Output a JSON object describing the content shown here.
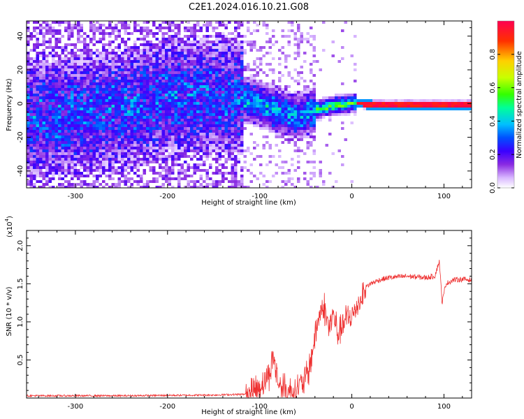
{
  "title": "C2E1.2024.016.10.21.G08",
  "colors": {
    "snr_line": "#ee3030",
    "colormap": [
      "#ffffff",
      "#d9b8ff",
      "#8a2be2",
      "#5a00ff",
      "#0000ff",
      "#00bfff",
      "#00ff66",
      "#adff2f",
      "#ffd000",
      "#ff4000",
      "#ff0040"
    ]
  },
  "chart_data": [
    {
      "type": "heatmap",
      "xlabel": "Height of straight line (km)",
      "ylabel": "Frequency (Hz)",
      "xlim": [
        -353,
        130
      ],
      "ylim": [
        -50,
        49
      ],
      "xticks": [
        -300,
        -200,
        -100,
        0,
        100
      ],
      "yticks": [
        -40,
        -20,
        0,
        20,
        40
      ],
      "colorbar": {
        "label": "Normalized spectral amplitude",
        "range": [
          0,
          1
        ],
        "ticks": [
          "0.0",
          "0.2",
          "0.4",
          "0.6",
          "0.8"
        ],
        "tick_values": [
          0.0,
          0.2,
          0.4,
          0.6,
          0.8
        ]
      },
      "ridge": {
        "description_points": [
          [
            -353,
            -8
          ],
          [
            -300,
            -5
          ],
          [
            -250,
            -2
          ],
          [
            -200,
            4
          ],
          [
            -150,
            5
          ],
          [
            -120,
            4
          ],
          [
            -100,
            0
          ],
          [
            -80,
            -4
          ],
          [
            -60,
            -7
          ],
          [
            -40,
            -3
          ],
          [
            -20,
            0
          ],
          [
            0,
            1
          ],
          [
            20,
            0
          ],
          [
            90,
            0
          ],
          [
            130,
            0
          ]
        ]
      }
    },
    {
      "type": "line",
      "xlabel": "Height of straight line (km)",
      "ylabel": "SNR (10 * v/v)",
      "y_multiplier_label": "(x10",
      "y_multiplier_exp": "4",
      "y_multiplier_close": ")",
      "xlim": [
        -353,
        130
      ],
      "ylim": [
        0,
        2.2
      ],
      "xticks": [
        -300,
        -200,
        -100,
        0,
        100
      ],
      "yticks": [
        0.5,
        1.0,
        1.5,
        2.0
      ],
      "ytick_labels": [
        "0.5",
        "1.0",
        "1.5",
        "2.0"
      ],
      "series": [
        {
          "points": [
            [
              -353,
              0.03
            ],
            [
              -250,
              0.03
            ],
            [
              -150,
              0.04
            ],
            [
              -115,
              0.05
            ],
            [
              -100,
              0.15
            ],
            [
              -90,
              0.3
            ],
            [
              -85,
              0.55
            ],
            [
              -80,
              0.2
            ],
            [
              -70,
              0.08
            ],
            [
              -60,
              0.12
            ],
            [
              -50,
              0.25
            ],
            [
              -45,
              0.45
            ],
            [
              -40,
              0.8
            ],
            [
              -35,
              1.1
            ],
            [
              -30,
              1.2
            ],
            [
              -25,
              0.9
            ],
            [
              -20,
              1.1
            ],
            [
              -15,
              0.85
            ],
            [
              -10,
              0.95
            ],
            [
              -5,
              1.05
            ],
            [
              0,
              1.05
            ],
            [
              5,
              1.2
            ],
            [
              10,
              1.3
            ],
            [
              15,
              1.45
            ],
            [
              20,
              1.5
            ],
            [
              30,
              1.55
            ],
            [
              40,
              1.58
            ],
            [
              60,
              1.6
            ],
            [
              80,
              1.58
            ],
            [
              90,
              1.6
            ],
            [
              95,
              1.8
            ],
            [
              98,
              1.25
            ],
            [
              102,
              1.5
            ],
            [
              110,
              1.55
            ],
            [
              120,
              1.56
            ],
            [
              130,
              1.55
            ]
          ]
        }
      ]
    }
  ]
}
